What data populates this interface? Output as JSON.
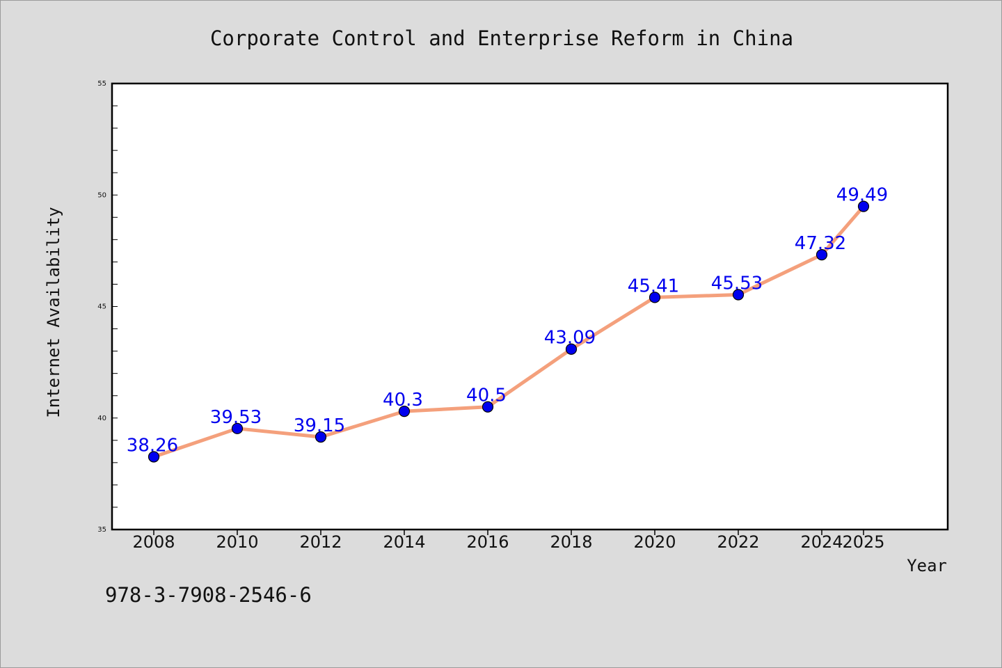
{
  "chart_data": {
    "type": "line",
    "title": "Corporate Control and Enterprise Reform in China",
    "xlabel": "Year",
    "ylabel": "Internet Availability",
    "x": [
      "2008",
      "2010",
      "2012",
      "2014",
      "2016",
      "2018",
      "2020",
      "2022",
      "2024",
      "2025"
    ],
    "series": [
      {
        "values": [
          38.26,
          39.53,
          39.15,
          40.3,
          40.5,
          43.09,
          45.41,
          45.53,
          47.32,
          49.49
        ],
        "data_labels": [
          "38.26",
          "39.53",
          "39.15",
          "40.3",
          "40.5",
          "43.09",
          "45.41",
          "45.53",
          "47.32",
          "49.49"
        ],
        "line_color": "#f4a07c",
        "marker_color": "#0000ee",
        "label_color": "#0000ee"
      }
    ],
    "ylim": [
      35,
      55
    ],
    "yticks": [
      "35",
      "40",
      "45",
      "50",
      "55"
    ],
    "grid": false,
    "legend": "none"
  },
  "footnote": "978-3-7908-2546-6",
  "colors": {
    "background": "#dcdcdc",
    "plot_background": "#ffffff",
    "axis": "#000000",
    "text": "#111111"
  }
}
